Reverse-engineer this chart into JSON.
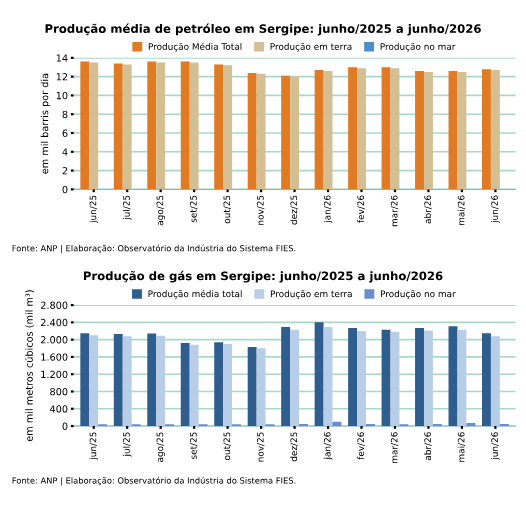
{
  "chart_data": [
    {
      "type": "bar",
      "title": "Produção média de petróleo em Sergipe: junho/2025 a junho/2026",
      "ylabel": "em mil barris por dia",
      "categories": [
        "jun/25",
        "jul/25",
        "ago/25",
        "set/25",
        "out/25",
        "nov/25",
        "dez/25",
        "jan/26",
        "fev/26",
        "mar/26",
        "abr/26",
        "mai/26",
        "jun/26"
      ],
      "series": [
        {
          "name": "Produção Média Total",
          "color": "#e07b24",
          "values": [
            13.6,
            13.4,
            13.6,
            13.6,
            13.3,
            12.4,
            12.1,
            12.7,
            13.0,
            13.0,
            12.6,
            12.6,
            12.8
          ]
        },
        {
          "name": "Produção em terra",
          "color": "#d4bf95",
          "values": [
            13.5,
            13.3,
            13.5,
            13.5,
            13.2,
            12.3,
            12.0,
            12.6,
            12.9,
            12.9,
            12.5,
            12.5,
            12.7
          ]
        },
        {
          "name": "Produção no mar",
          "color": "#4a90c8",
          "values": [
            null,
            null,
            null,
            null,
            null,
            null,
            null,
            null,
            null,
            null,
            null,
            null,
            null
          ]
        }
      ],
      "ylim": [
        0,
        14
      ],
      "yticks": [
        0,
        2,
        4,
        6,
        8,
        10,
        12,
        14
      ],
      "grid": "y",
      "legend": "top",
      "annotations": [
        "Fonte: ANP | Elaboração: Observatório da Indústria do Sistema FIES."
      ]
    },
    {
      "type": "bar",
      "title": "Produção de gás em Sergipe: junho/2025 a junho/2026",
      "ylabel": "em mil metros cúbicos (mil m³)",
      "categories": [
        "jun/25",
        "jul/25",
        "ago/25",
        "set/25",
        "out/25",
        "nov/25",
        "dez/25",
        "jan/26",
        "fev/26",
        "mar/26",
        "abr/26",
        "mai/26",
        "jun/26"
      ],
      "series": [
        {
          "name": "Produção média total",
          "color": "#2f5d8e",
          "values": [
            2150,
            2130,
            2140,
            1920,
            1940,
            1830,
            2290,
            2400,
            2270,
            2230,
            2270,
            2310,
            2150
          ]
        },
        {
          "name": "Produção em terra",
          "color": "#b8cde6",
          "values": [
            2100,
            2080,
            2090,
            1880,
            1900,
            1800,
            2230,
            2290,
            2200,
            2180,
            2210,
            2230,
            2080
          ]
        },
        {
          "name": "Produção no mar",
          "color": "#6a8fc6",
          "values": [
            40,
            40,
            40,
            40,
            40,
            40,
            50,
            100,
            50,
            40,
            50,
            70,
            50
          ]
        }
      ],
      "ylim": [
        0,
        2800
      ],
      "yticks": [
        0,
        {
          "value": 400,
          "label": "400"
        },
        {
          "value": 800,
          "label": "800"
        },
        {
          "value": 1200,
          "label": "1.200"
        },
        {
          "value": 1600,
          "label": "1.600"
        },
        {
          "value": 2000,
          "label": "2.000"
        },
        {
          "value": 2400,
          "label": "2.400"
        },
        {
          "value": 2800,
          "label": "2.800"
        }
      ],
      "grid": "y",
      "legend": "top",
      "annotations": [
        "Fonte: ANP | Elaboração: Observatório da Indústria do Sistema FIES."
      ]
    }
  ]
}
